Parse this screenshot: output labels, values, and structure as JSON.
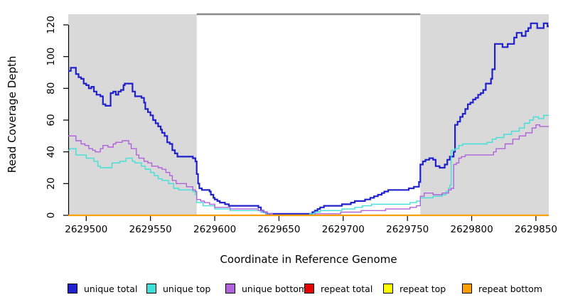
{
  "chart_data": {
    "type": "line",
    "subtype": "step-coverage",
    "xlabel": "Coordinate in Reference Genome",
    "ylabel": "Read Coverage Depth",
    "xlim": [
      2629486,
      2629860
    ],
    "ylim": [
      0,
      125
    ],
    "x_ticks": [
      2629500,
      2629550,
      2629600,
      2629650,
      2629700,
      2629750,
      2629800,
      2629850
    ],
    "y_ticks": [
      0,
      20,
      40,
      60,
      80,
      100,
      120
    ],
    "grid": false,
    "background_color": "#ffffff",
    "shaded_region_color": "#d9d9d9",
    "shaded_regions": [
      {
        "x1": 2629486,
        "x2": 2629586
      },
      {
        "x1": 2629760,
        "x2": 2629860
      }
    ],
    "top_bar": {
      "x1": 2629586,
      "x2": 2629760,
      "color": "#8a8a8a"
    },
    "legend_position": "bottom",
    "legend": [
      {
        "label": "unique total",
        "color": "#2020cc"
      },
      {
        "label": "unique top",
        "color": "#40e0d8"
      },
      {
        "label": "unique bottom",
        "color": "#af62dc"
      },
      {
        "label": "repeat total",
        "color": "#e60000"
      },
      {
        "label": "repeat top",
        "color": "#ffff00"
      },
      {
        "label": "repeat bottom",
        "color": "#ff9e00"
      }
    ],
    "series": [
      {
        "name": "unique total",
        "color": "#2020cc",
        "width": 2.2,
        "points": [
          [
            2629486,
            91
          ],
          [
            2629488,
            93
          ],
          [
            2629492,
            89
          ],
          [
            2629494,
            87
          ],
          [
            2629496,
            86
          ],
          [
            2629498,
            83
          ],
          [
            2629500,
            82
          ],
          [
            2629502,
            80
          ],
          [
            2629504,
            81
          ],
          [
            2629506,
            78
          ],
          [
            2629508,
            76
          ],
          [
            2629511,
            75
          ],
          [
            2629513,
            70
          ],
          [
            2629515,
            69
          ],
          [
            2629519,
            77
          ],
          [
            2629521,
            78
          ],
          [
            2629523,
            76
          ],
          [
            2629525,
            78
          ],
          [
            2629527,
            79
          ],
          [
            2629529,
            82
          ],
          [
            2629530,
            83
          ],
          [
            2629536,
            78
          ],
          [
            2629538,
            75
          ],
          [
            2629543,
            74
          ],
          [
            2629545,
            71
          ],
          [
            2629546,
            67
          ],
          [
            2629548,
            65
          ],
          [
            2629550,
            63
          ],
          [
            2629552,
            60
          ],
          [
            2629554,
            58
          ],
          [
            2629556,
            56
          ],
          [
            2629558,
            54
          ],
          [
            2629559,
            52
          ],
          [
            2629561,
            50
          ],
          [
            2629563,
            46
          ],
          [
            2629565,
            45
          ],
          [
            2629567,
            41
          ],
          [
            2629569,
            39
          ],
          [
            2629571,
            37
          ],
          [
            2629583,
            36
          ],
          [
            2629585,
            34
          ],
          [
            2629586,
            26
          ],
          [
            2629587,
            20
          ],
          [
            2629588,
            17
          ],
          [
            2629590,
            16
          ],
          [
            2629596,
            15
          ],
          [
            2629597,
            13
          ],
          [
            2629599,
            11
          ],
          [
            2629600,
            10
          ],
          [
            2629602,
            9
          ],
          [
            2629604,
            8
          ],
          [
            2629608,
            7
          ],
          [
            2629611,
            6
          ],
          [
            2629634,
            5
          ],
          [
            2629636,
            3
          ],
          [
            2629638,
            2
          ],
          [
            2629640,
            1
          ],
          [
            2629676,
            2
          ],
          [
            2629678,
            3
          ],
          [
            2629680,
            4
          ],
          [
            2629682,
            5
          ],
          [
            2629685,
            6
          ],
          [
            2629699,
            7
          ],
          [
            2629706,
            8
          ],
          [
            2629709,
            9
          ],
          [
            2629717,
            10
          ],
          [
            2629721,
            11
          ],
          [
            2629724,
            12
          ],
          [
            2629727,
            13
          ],
          [
            2629730,
            14
          ],
          [
            2629732,
            15
          ],
          [
            2629735,
            16
          ],
          [
            2629751,
            17
          ],
          [
            2629755,
            18
          ],
          [
            2629759,
            21
          ],
          [
            2629760,
            32
          ],
          [
            2629762,
            34
          ],
          [
            2629764,
            35
          ],
          [
            2629767,
            36
          ],
          [
            2629770,
            35
          ],
          [
            2629772,
            31
          ],
          [
            2629775,
            30
          ],
          [
            2629779,
            32
          ],
          [
            2629781,
            35
          ],
          [
            2629783,
            37
          ],
          [
            2629786,
            40
          ],
          [
            2629787,
            57
          ],
          [
            2629789,
            59
          ],
          [
            2629791,
            62
          ],
          [
            2629793,
            64
          ],
          [
            2629795,
            67
          ],
          [
            2629797,
            70
          ],
          [
            2629799,
            71
          ],
          [
            2629801,
            73
          ],
          [
            2629803,
            74
          ],
          [
            2629805,
            76
          ],
          [
            2629807,
            77
          ],
          [
            2629809,
            79
          ],
          [
            2629811,
            83
          ],
          [
            2629815,
            86
          ],
          [
            2629816,
            92
          ],
          [
            2629818,
            108
          ],
          [
            2629824,
            106
          ],
          [
            2629828,
            108
          ],
          [
            2629833,
            112
          ],
          [
            2629835,
            115
          ],
          [
            2629839,
            113
          ],
          [
            2629842,
            116
          ],
          [
            2629844,
            118
          ],
          [
            2629846,
            121
          ],
          [
            2629851,
            118
          ],
          [
            2629856,
            121
          ],
          [
            2629859,
            119
          ]
        ]
      },
      {
        "name": "unique top",
        "color": "#40e0d8",
        "width": 1.4,
        "points": [
          [
            2629486,
            41
          ],
          [
            2629487,
            42
          ],
          [
            2629492,
            38
          ],
          [
            2629500,
            36
          ],
          [
            2629506,
            34
          ],
          [
            2629509,
            31
          ],
          [
            2629511,
            30
          ],
          [
            2629520,
            33
          ],
          [
            2629526,
            34
          ],
          [
            2629531,
            36
          ],
          [
            2629536,
            34
          ],
          [
            2629538,
            33
          ],
          [
            2629543,
            31
          ],
          [
            2629546,
            29
          ],
          [
            2629550,
            27
          ],
          [
            2629553,
            25
          ],
          [
            2629556,
            23
          ],
          [
            2629559,
            22
          ],
          [
            2629564,
            20
          ],
          [
            2629568,
            17
          ],
          [
            2629572,
            16
          ],
          [
            2629583,
            15
          ],
          [
            2629585,
            13
          ],
          [
            2629586,
            8
          ],
          [
            2629591,
            6
          ],
          [
            2629600,
            4
          ],
          [
            2629612,
            3
          ],
          [
            2629636,
            2
          ],
          [
            2629640,
            1
          ],
          [
            2629644,
            0
          ],
          [
            2629674,
            1
          ],
          [
            2629678,
            2
          ],
          [
            2629682,
            3
          ],
          [
            2629699,
            4
          ],
          [
            2629709,
            5
          ],
          [
            2629715,
            6
          ],
          [
            2629722,
            7
          ],
          [
            2629752,
            8
          ],
          [
            2629757,
            9
          ],
          [
            2629760,
            11
          ],
          [
            2629770,
            12
          ],
          [
            2629777,
            13
          ],
          [
            2629780,
            15
          ],
          [
            2629782,
            17
          ],
          [
            2629783,
            19
          ],
          [
            2629784,
            41
          ],
          [
            2629787,
            42
          ],
          [
            2629790,
            44
          ],
          [
            2629793,
            45
          ],
          [
            2629812,
            46
          ],
          [
            2629816,
            48
          ],
          [
            2629819,
            49
          ],
          [
            2629825,
            51
          ],
          [
            2629831,
            53
          ],
          [
            2629837,
            55
          ],
          [
            2629841,
            58
          ],
          [
            2629845,
            60
          ],
          [
            2629848,
            62
          ],
          [
            2629852,
            61
          ],
          [
            2629856,
            63
          ]
        ]
      },
      {
        "name": "unique bottom",
        "color": "#af62dc",
        "width": 1.4,
        "points": [
          [
            2629486,
            50
          ],
          [
            2629492,
            47
          ],
          [
            2629496,
            45
          ],
          [
            2629499,
            44
          ],
          [
            2629502,
            42
          ],
          [
            2629505,
            41
          ],
          [
            2629507,
            40
          ],
          [
            2629511,
            42
          ],
          [
            2629513,
            44
          ],
          [
            2629517,
            43
          ],
          [
            2629521,
            45
          ],
          [
            2629523,
            46
          ],
          [
            2629528,
            47
          ],
          [
            2629533,
            45
          ],
          [
            2629535,
            42
          ],
          [
            2629539,
            38
          ],
          [
            2629541,
            36
          ],
          [
            2629545,
            34
          ],
          [
            2629548,
            33
          ],
          [
            2629551,
            31
          ],
          [
            2629556,
            30
          ],
          [
            2629559,
            29
          ],
          [
            2629562,
            27
          ],
          [
            2629565,
            25
          ],
          [
            2629567,
            22
          ],
          [
            2629570,
            20
          ],
          [
            2629578,
            18
          ],
          [
            2629583,
            16
          ],
          [
            2629585,
            15
          ],
          [
            2629586,
            10
          ],
          [
            2629589,
            9
          ],
          [
            2629592,
            8
          ],
          [
            2629596,
            7
          ],
          [
            2629600,
            5
          ],
          [
            2629612,
            4
          ],
          [
            2629634,
            3
          ],
          [
            2629638,
            2
          ],
          [
            2629641,
            1
          ],
          [
            2629645,
            0
          ],
          [
            2629678,
            1
          ],
          [
            2629698,
            2
          ],
          [
            2629714,
            3
          ],
          [
            2629733,
            4
          ],
          [
            2629752,
            5
          ],
          [
            2629757,
            6
          ],
          [
            2629760,
            12
          ],
          [
            2629763,
            14
          ],
          [
            2629770,
            13
          ],
          [
            2629777,
            14
          ],
          [
            2629782,
            16
          ],
          [
            2629784,
            17
          ],
          [
            2629786,
            32
          ],
          [
            2629788,
            33
          ],
          [
            2629790,
            36
          ],
          [
            2629792,
            37
          ],
          [
            2629795,
            38
          ],
          [
            2629817,
            40
          ],
          [
            2629819,
            42
          ],
          [
            2629826,
            45
          ],
          [
            2629832,
            48
          ],
          [
            2629837,
            50
          ],
          [
            2629842,
            52
          ],
          [
            2629847,
            55
          ],
          [
            2629850,
            57
          ],
          [
            2629853,
            56
          ]
        ]
      },
      {
        "name": "repeat total",
        "color": "#e60000",
        "width": 1.4,
        "points": [
          [
            2629486,
            0
          ],
          [
            2629860,
            0
          ]
        ]
      },
      {
        "name": "repeat top",
        "color": "#ffff00",
        "width": 1.4,
        "points": [
          [
            2629486,
            0
          ],
          [
            2629860,
            0
          ]
        ]
      },
      {
        "name": "repeat bottom",
        "color": "#ff9e00",
        "width": 2.2,
        "points": [
          [
            2629486,
            0
          ],
          [
            2629860,
            0
          ]
        ]
      }
    ]
  }
}
